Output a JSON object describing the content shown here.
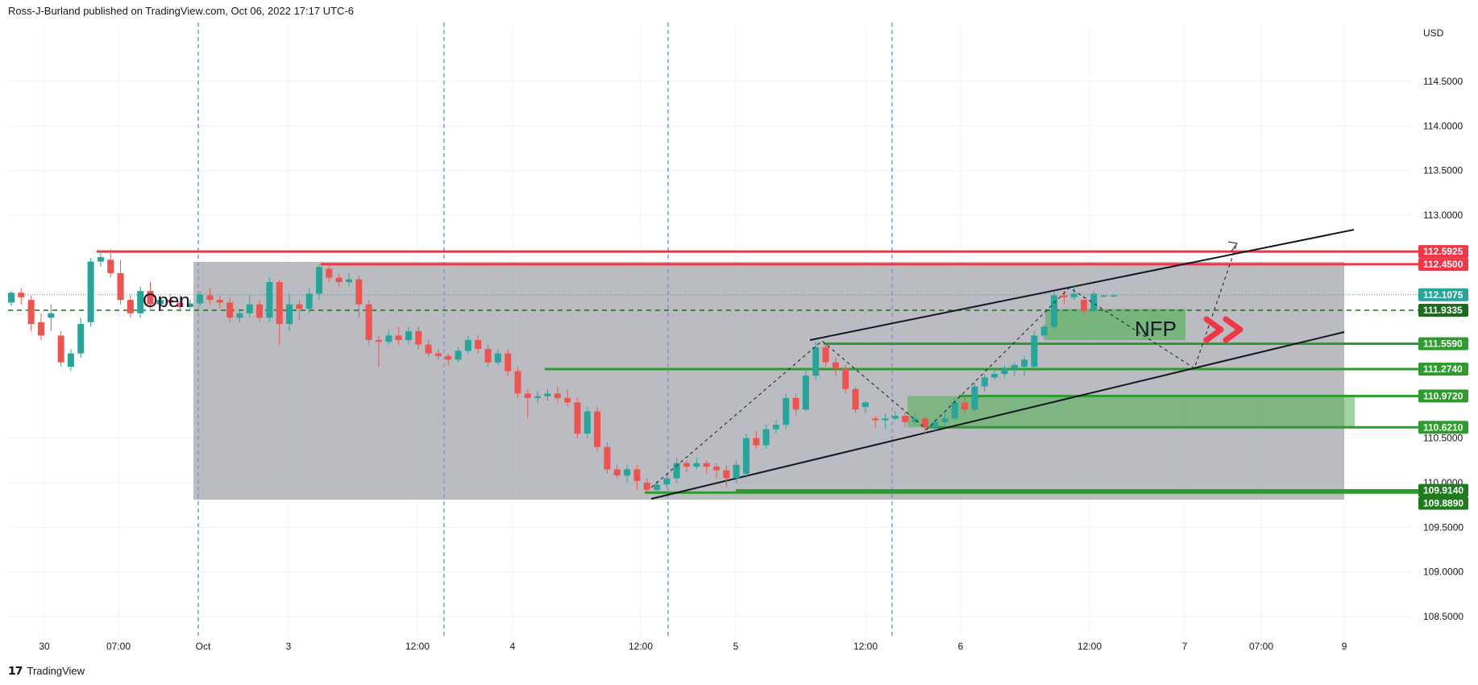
{
  "header": {
    "publisher": "Ross-J-Burland published on TradingView.com, Oct 06, 2022 17:17 UTC-6"
  },
  "footer": {
    "logo_icon": "tradingview-logo-icon",
    "brand": "TradingView"
  },
  "colors": {
    "up": "#26a69a",
    "down": "#ef5350",
    "resistance": "#f23645",
    "support": "#2e9b2e",
    "box": "#9598a1",
    "zone": "#4caf50",
    "arrows": "#f23645",
    "vline": "#2962ff"
  },
  "chart_data": {
    "type": "candlestick",
    "ylabel": "USD",
    "ylim": [
      108.3,
      115.0
    ],
    "y_ticks": [
      "114.5000",
      "114.0000",
      "113.5000",
      "113.0000",
      "110.5000",
      "110.0000",
      "109.5000",
      "109.0000",
      "108.5000"
    ],
    "x_ticks": [
      "30",
      "07:00",
      "Oct",
      "3",
      "12:00",
      "4",
      "12:00",
      "5",
      "12:00",
      "6",
      "12:00",
      "7",
      "07:00",
      "9"
    ],
    "last_price": "112.1075",
    "price_labels": [
      {
        "value": 112.5925,
        "text": "112.5925",
        "color": "#f23645"
      },
      {
        "value": 112.45,
        "text": "112.4500",
        "color": "#f23645"
      },
      {
        "value": 112.1075,
        "text": "112.1075",
        "color": "#26a69a"
      },
      {
        "value": 111.9335,
        "text": "111.9335",
        "color": "#1e6b1e"
      },
      {
        "value": 111.559,
        "text": "111.5590",
        "color": "#2e9b2e"
      },
      {
        "value": 111.274,
        "text": "111.2740",
        "color": "#2e9b2e"
      },
      {
        "value": 110.972,
        "text": "110.9720",
        "color": "#2e9b2e"
      },
      {
        "value": 110.621,
        "text": "110.6210",
        "color": "#2e9b2e"
      },
      {
        "value": 109.914,
        "text": "109.9140",
        "color": "#1e7b1e"
      },
      {
        "value": 109.889,
        "text": "109.8890",
        "color": "#1e7b1e"
      }
    ],
    "annotations": {
      "open_label": "Open",
      "nfp_label": "NFP"
    },
    "candles": [
      [
        112.02,
        112.13,
        112.15,
        111.98
      ],
      [
        112.13,
        112.08,
        112.18,
        112.0
      ],
      [
        112.05,
        111.78,
        112.1,
        111.7
      ],
      [
        111.8,
        111.65,
        111.9,
        111.6
      ],
      [
        111.85,
        111.9,
        112.0,
        111.7
      ],
      [
        111.65,
        111.35,
        111.7,
        111.3
      ],
      [
        111.3,
        111.45,
        111.5,
        111.25
      ],
      [
        111.45,
        111.78,
        111.85,
        111.4
      ],
      [
        111.8,
        112.48,
        112.52,
        111.75
      ],
      [
        112.48,
        112.53,
        112.6,
        112.42
      ],
      [
        112.5,
        112.35,
        112.62,
        112.3
      ],
      [
        112.35,
        112.05,
        112.5,
        112.0
      ],
      [
        112.05,
        111.9,
        112.1,
        111.85
      ],
      [
        111.9,
        112.15,
        112.2,
        111.85
      ],
      [
        112.15,
        112.0,
        112.25,
        111.95
      ],
      [
        112.0,
        112.05,
        112.1,
        111.97
      ],
      [
        112.05,
        112.02,
        112.12,
        111.98
      ],
      [
        112.02,
        111.97,
        112.1,
        111.92
      ],
      [
        111.97,
        112.01,
        112.05,
        111.95
      ],
      [
        112.01,
        112.11,
        112.15,
        111.98
      ],
      [
        112.1,
        112.05,
        112.18,
        112.0
      ],
      [
        112.05,
        112.02,
        112.1,
        111.95
      ],
      [
        112.02,
        111.85,
        112.08,
        111.8
      ],
      [
        111.85,
        111.9,
        111.95,
        111.8
      ],
      [
        111.9,
        112.0,
        112.1,
        111.85
      ],
      [
        112.0,
        111.85,
        112.05,
        111.8
      ],
      [
        111.85,
        112.25,
        112.3,
        111.8
      ],
      [
        112.25,
        111.78,
        112.28,
        111.55
      ],
      [
        111.78,
        112.0,
        112.12,
        111.7
      ],
      [
        112.0,
        111.95,
        112.05,
        111.82
      ],
      [
        111.95,
        112.12,
        112.18,
        111.9
      ],
      [
        112.12,
        112.42,
        112.45,
        112.05
      ],
      [
        112.4,
        112.3,
        112.45,
        112.25
      ],
      [
        112.3,
        112.25,
        112.35,
        112.2
      ],
      [
        112.25,
        112.28,
        112.35,
        112.2
      ],
      [
        112.28,
        112.0,
        112.32,
        111.85
      ],
      [
        112.0,
        111.6,
        112.05,
        111.55
      ],
      [
        111.6,
        111.58,
        111.65,
        111.3
      ],
      [
        111.58,
        111.65,
        111.72,
        111.55
      ],
      [
        111.65,
        111.6,
        111.75,
        111.55
      ],
      [
        111.6,
        111.7,
        111.75,
        111.55
      ],
      [
        111.7,
        111.55,
        111.75,
        111.5
      ],
      [
        111.55,
        111.45,
        111.6,
        111.42
      ],
      [
        111.45,
        111.42,
        111.5,
        111.38
      ],
      [
        111.42,
        111.38,
        111.45,
        111.32
      ],
      [
        111.38,
        111.48,
        111.52,
        111.35
      ],
      [
        111.48,
        111.6,
        111.65,
        111.45
      ],
      [
        111.6,
        111.5,
        111.65,
        111.45
      ],
      [
        111.5,
        111.35,
        111.55,
        111.3
      ],
      [
        111.35,
        111.45,
        111.5,
        111.32
      ],
      [
        111.45,
        111.25,
        111.5,
        111.2
      ],
      [
        111.25,
        111.0,
        111.3,
        110.95
      ],
      [
        111.0,
        110.95,
        111.05,
        110.72
      ],
      [
        110.95,
        110.97,
        111.02,
        110.9
      ],
      [
        110.97,
        111.0,
        111.05,
        110.92
      ],
      [
        111.0,
        110.95,
        111.08,
        110.9
      ],
      [
        110.95,
        110.9,
        111.05,
        110.85
      ],
      [
        110.9,
        110.55,
        110.95,
        110.5
      ],
      [
        110.55,
        110.8,
        110.85,
        110.5
      ],
      [
        110.8,
        110.4,
        110.85,
        110.35
      ],
      [
        110.4,
        110.15,
        110.45,
        110.1
      ],
      [
        110.15,
        110.08,
        110.2,
        110.05
      ],
      [
        110.08,
        110.15,
        110.2,
        110.0
      ],
      [
        110.15,
        110.02,
        110.2,
        109.92
      ],
      [
        110.0,
        109.92,
        110.05,
        109.88
      ],
      [
        109.92,
        109.98,
        110.02,
        109.9
      ],
      [
        109.98,
        110.05,
        110.1,
        109.95
      ],
      [
        110.05,
        110.22,
        110.28,
        110.0
      ],
      [
        110.22,
        110.18,
        110.25,
        110.12
      ],
      [
        110.18,
        110.22,
        110.28,
        110.15
      ],
      [
        110.22,
        110.18,
        110.25,
        110.1
      ],
      [
        110.18,
        110.14,
        110.22,
        110.05
      ],
      [
        110.14,
        110.05,
        110.2,
        109.95
      ],
      [
        110.05,
        110.2,
        110.25,
        110.0
      ],
      [
        110.1,
        110.5,
        110.55,
        110.05
      ],
      [
        110.5,
        110.42,
        110.58,
        110.38
      ],
      [
        110.42,
        110.6,
        110.65,
        110.38
      ],
      [
        110.6,
        110.65,
        110.7,
        110.55
      ],
      [
        110.65,
        110.95,
        111.0,
        110.6
      ],
      [
        110.95,
        110.82,
        111.0,
        110.75
      ],
      [
        110.82,
        111.2,
        111.28,
        110.8
      ],
      [
        111.2,
        111.52,
        111.58,
        111.15
      ],
      [
        111.52,
        111.35,
        111.55,
        111.3
      ],
      [
        111.35,
        111.28,
        111.4,
        111.2
      ],
      [
        111.28,
        111.05,
        111.32,
        111.0
      ],
      [
        111.05,
        110.82,
        111.08,
        110.78
      ],
      [
        110.85,
        110.9,
        110.92,
        110.78
      ],
      [
        110.72,
        110.7,
        110.75,
        110.62
      ],
      [
        110.7,
        110.72,
        110.78,
        110.6
      ],
      [
        110.72,
        110.75,
        110.8,
        110.7
      ],
      [
        110.75,
        110.68,
        110.8,
        110.62
      ],
      [
        110.68,
        110.72,
        110.78,
        110.65
      ],
      [
        110.72,
        110.62,
        110.75,
        110.55
      ],
      [
        110.62,
        110.68,
        110.72,
        110.58
      ],
      [
        110.68,
        110.72,
        110.78,
        110.65
      ],
      [
        110.72,
        110.9,
        110.95,
        110.7
      ],
      [
        110.9,
        110.82,
        110.95,
        110.78
      ],
      [
        110.82,
        111.08,
        111.12,
        110.8
      ],
      [
        111.08,
        111.18,
        111.22,
        111.02
      ],
      [
        111.18,
        111.22,
        111.28,
        111.15
      ],
      [
        111.22,
        111.28,
        111.32,
        111.18
      ],
      [
        111.28,
        111.32,
        111.35,
        111.2
      ],
      [
        111.3,
        111.38,
        111.42,
        111.2
      ],
      [
        111.3,
        111.65,
        111.7,
        111.25
      ],
      [
        111.65,
        111.75,
        111.78,
        111.6
      ],
      [
        111.75,
        112.1,
        112.15,
        111.72
      ],
      [
        112.1,
        112.08,
        112.15,
        112.0
      ],
      [
        112.08,
        112.12,
        112.22,
        112.05
      ],
      [
        112.05,
        111.93,
        112.1,
        111.88
      ],
      [
        111.93,
        112.12,
        112.15,
        111.9
      ],
      [
        112.1,
        112.1,
        112.12,
        112.08
      ],
      [
        112.1,
        112.1,
        112.12,
        112.08
      ]
    ]
  }
}
